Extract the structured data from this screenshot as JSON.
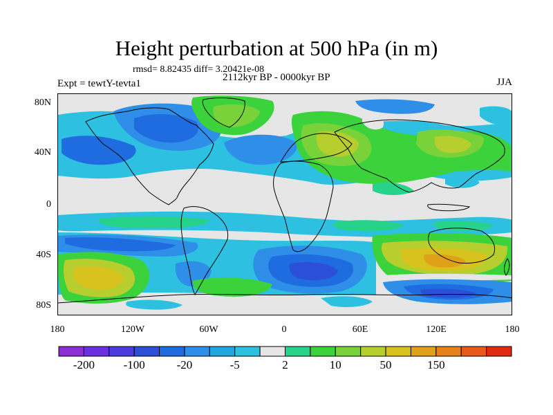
{
  "figure": {
    "title": "Height perturbation at 500 hPa (in m)",
    "stats_line": "rmsd= 8.82435 diff= 3.20421e-08",
    "period": "2112kyr BP - 0000kyr BP",
    "experiment": "Expt = tewtY-tevta1",
    "season": "JJA"
  },
  "map": {
    "projection": "cylindrical-equidistant",
    "lon_range": [
      -180,
      180
    ],
    "lat_range": [
      -90,
      90
    ],
    "lat_tick_labels": [
      "80N",
      "40N",
      "0",
      "40S",
      "80S"
    ],
    "lon_tick_labels": [
      "180",
      "120W",
      "60W",
      "0",
      "60E",
      "120E",
      "180"
    ],
    "features": [
      "filled-contours",
      "coastlines"
    ],
    "fill_regions": [
      {
        "name": "north-pacific-low",
        "lon": -145,
        "lat": 40,
        "value": -20
      },
      {
        "name": "north-america-low",
        "lon": -95,
        "lat": 68,
        "value": -20
      },
      {
        "name": "arctic-high",
        "lon": -40,
        "lat": 78,
        "value": 10
      },
      {
        "name": "eurasia-high",
        "lon": 50,
        "lat": 52,
        "value": 10
      },
      {
        "name": "asia-high",
        "lon": 110,
        "lat": 45,
        "value": 10
      },
      {
        "name": "south-pacific-high",
        "lon": -150,
        "lat": -52,
        "value": 50
      },
      {
        "name": "south-atlantic-low",
        "lon": -20,
        "lat": -48,
        "value": -20
      },
      {
        "name": "indian-ocean-high",
        "lon": 105,
        "lat": -45,
        "value": 50
      },
      {
        "name": "southern-ocean-low",
        "lon": 130,
        "lat": -65,
        "value": -20
      },
      {
        "name": "antarctic-high",
        "lon": -45,
        "lat": -70,
        "value": 10
      }
    ]
  },
  "colorbar": {
    "levels_shown": [
      "-200",
      "-100",
      "-20",
      "-5",
      "2",
      "10",
      "50",
      "150"
    ],
    "colors": [
      "#8e2cd6",
      "#6a30e0",
      "#4b3ce0",
      "#2c4fd8",
      "#1f6be0",
      "#2e8ee8",
      "#1fa7e0",
      "#2ec0e0",
      "#e6e6e6",
      "#27d28a",
      "#3bd23b",
      "#7ad23a",
      "#b6cf2e",
      "#d8c21e",
      "#e0a11a",
      "#e8801a",
      "#e85a1a",
      "#e02a12"
    ]
  }
}
